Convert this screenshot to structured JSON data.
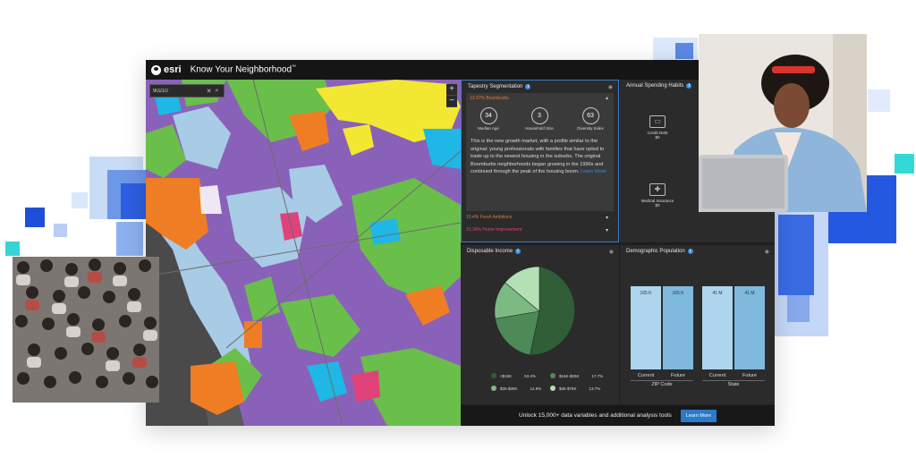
{
  "colors": {
    "accent": "#3b8fd9",
    "map_purple": "#8a61b8",
    "map_green": "#6abf4b",
    "map_lightblue": "#a8cbe6",
    "map_orange": "#ef7d24",
    "map_yellow": "#f2e831",
    "map_cyan": "#1fb7e6",
    "map_red": "#e0437a"
  },
  "app": {
    "brand": "esri",
    "title": "Know Your Neighborhood",
    "title_mark": "™"
  },
  "map": {
    "search_value": "90210",
    "clear_icon": "close-icon",
    "search_icon": "search-icon",
    "zoom_in": "+",
    "zoom_out": "−"
  },
  "tapestry": {
    "title": "Tapestry Segmentation",
    "segment_head": "13.97% Boomburbs",
    "stats": [
      {
        "value": "34",
        "label": "Median Age"
      },
      {
        "value": "3",
        "label": "Household Size"
      },
      {
        "value": "63",
        "label": "Diversity Index"
      }
    ],
    "description": "This is the new growth market, with a profile similar to the original: young professionals with families that have opted to trade up to the newest housing in the suburbs. The original Boomburbs neighborhoods began growing in the 1990s and continued through the peak of the housing boom.",
    "learn_more": "Learn More",
    "other_segments": [
      "10.4% Fresh Ambitions",
      "10.34% Home Improvement"
    ]
  },
  "spending": {
    "title": "Annual Spending Habits",
    "items": [
      {
        "label": "Credit Debt",
        "value": "$0",
        "icon": "credit-card-icon"
      },
      {
        "label": "Medical Insurance",
        "value": "$0",
        "icon": "medical-bag-icon"
      }
    ]
  },
  "income": {
    "title": "Disposable Income",
    "legend": [
      {
        "label": "<$15K",
        "pct": "53.4%",
        "color": "#2f5e37"
      },
      {
        "label": "$15K-$25K",
        "pct": "17.7%",
        "color": "#4e8a57"
      },
      {
        "label": "$25-$35K",
        "pct": "14.9%",
        "color": "#7dba83"
      },
      {
        "label": "$35-$75K",
        "pct": "13.7%",
        "color": "#b3e0b5"
      }
    ]
  },
  "demographic": {
    "title": "Demographic Population",
    "groups": [
      {
        "name": "ZIP Code",
        "bars": [
          {
            "label": "Current",
            "value": "165 K"
          },
          {
            "label": "Future",
            "value": "165 K"
          }
        ]
      },
      {
        "name": "State",
        "bars": [
          {
            "label": "Current",
            "value": "41 M"
          },
          {
            "label": "Future",
            "value": "41 M"
          }
        ]
      }
    ]
  },
  "footer": {
    "text": "Unlock 15,000+ data variables and additional analysis tools",
    "button": "Learn More"
  }
}
